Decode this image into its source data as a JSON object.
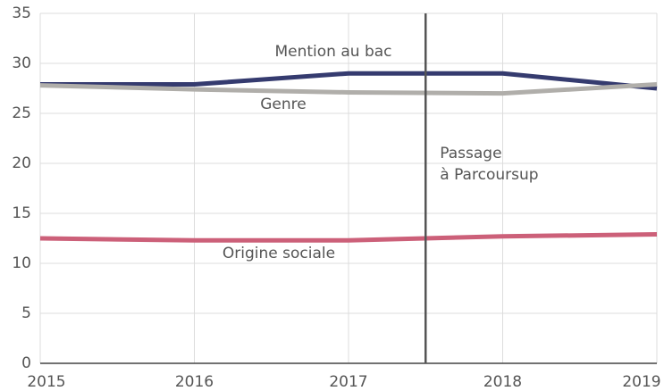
{
  "chart_data": {
    "type": "line",
    "x": [
      2015,
      2016,
      2017,
      2018,
      2019
    ],
    "series": [
      {
        "name": "Mention au bac",
        "color": "#353b6f",
        "values": [
          27.9,
          27.9,
          29.0,
          29.0,
          27.5
        ]
      },
      {
        "name": "Genre",
        "color": "#b0aeaa",
        "values": [
          27.8,
          27.4,
          27.1,
          27.0,
          27.9
        ]
      },
      {
        "name": "Origine sociale",
        "color": "#cc6079",
        "values": [
          12.5,
          12.3,
          12.3,
          12.7,
          12.9
        ]
      }
    ],
    "xlim": [
      2015,
      2019
    ],
    "xticks": [
      2015,
      2016,
      2017,
      2018,
      2019
    ],
    "ylim": [
      0,
      35
    ],
    "yticks": [
      0,
      5,
      10,
      15,
      20,
      25,
      30,
      35
    ],
    "grid": true,
    "annotations": [
      {
        "x": 2017.5,
        "text": [
          "Passage",
          "à Parcoursup"
        ]
      }
    ]
  }
}
